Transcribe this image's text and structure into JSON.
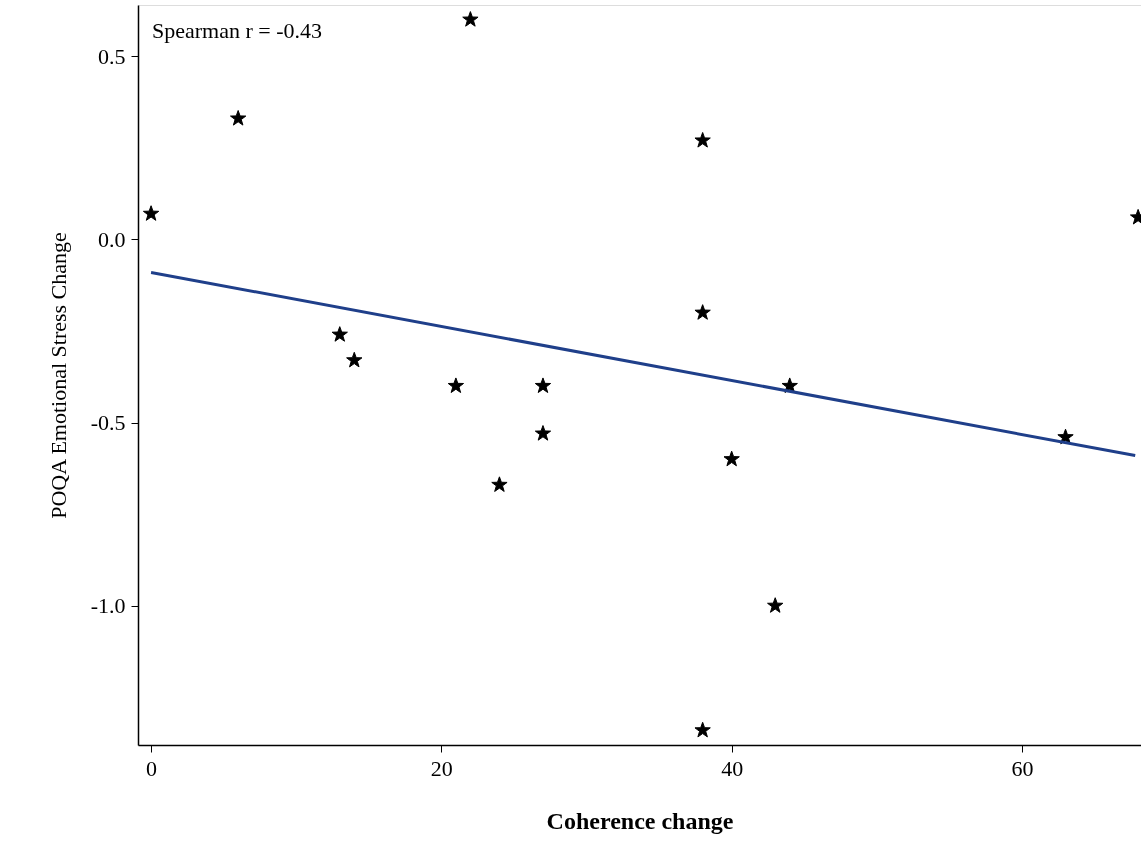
{
  "chart_data": {
    "type": "scatter",
    "xlabel": "Coherence change",
    "ylabel": "POQA Emotional Stress Change",
    "annotations": [
      "Spearman r = -0.43"
    ],
    "xlim": [
      -0.9,
      68.2
    ],
    "ylim": [
      -1.38,
      0.64
    ],
    "xticks": [
      0,
      20,
      40,
      60
    ],
    "yticks": [
      {
        "value": -1,
        "label": "-1.0"
      },
      {
        "value": -0.5,
        "label": "-0.5"
      },
      {
        "value": 0,
        "label": "0.0"
      },
      {
        "value": 0.5,
        "label": "0.5"
      }
    ],
    "grid": false,
    "series": [
      {
        "color": "#000000",
        "marker": "star",
        "x": [
          0,
          6,
          13,
          14,
          21,
          22,
          24,
          27,
          27,
          38,
          38,
          38,
          40,
          43,
          44,
          63,
          68
        ],
        "values": [
          0.07,
          0.33,
          -0.26,
          -0.33,
          -0.4,
          0.6,
          -0.67,
          -0.4,
          -0.53,
          0.27,
          -0.2,
          -1.34,
          -0.6,
          -1.0,
          -0.4,
          -0.54,
          0.06
        ]
      },
      {
        "type": "line",
        "color": "#1f3f8a",
        "marker": "none",
        "line_style": "solid",
        "x": [
          0,
          67.8
        ],
        "values": [
          -0.09,
          -0.59
        ]
      }
    ]
  }
}
